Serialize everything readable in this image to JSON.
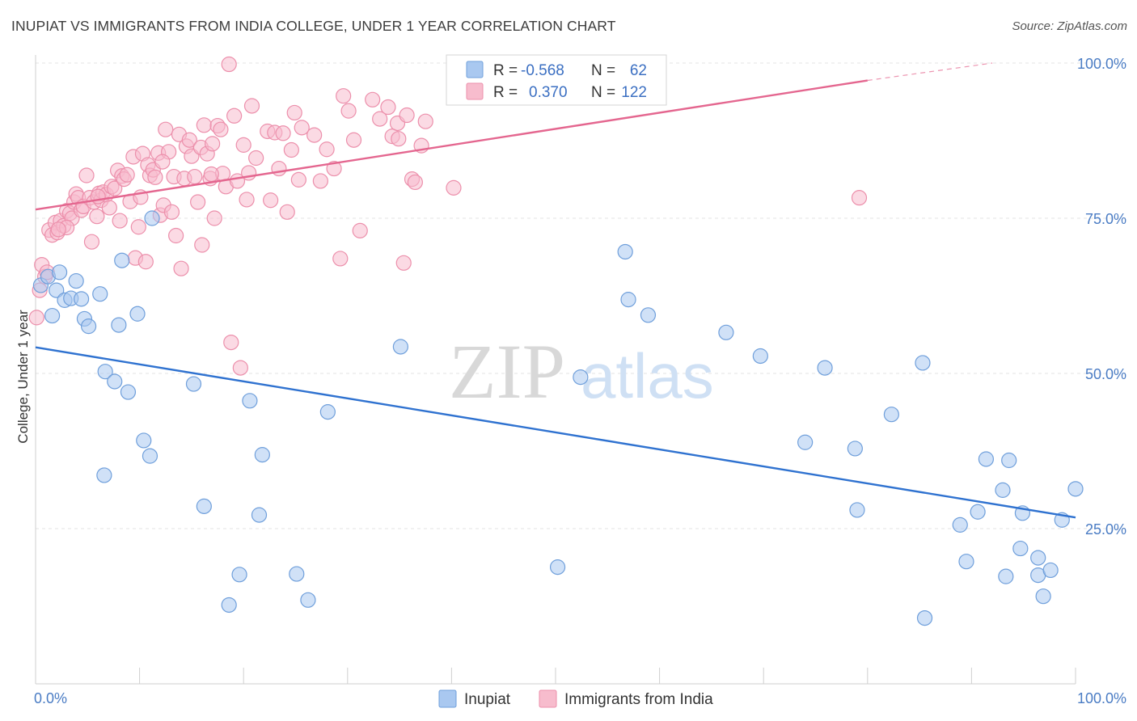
{
  "title": "INUPIAT VS IMMIGRANTS FROM INDIA COLLEGE, UNDER 1 YEAR CORRELATION CHART",
  "source": "Source: ZipAtlas.com",
  "watermark": {
    "zip": "ZIP",
    "atlas": "atlas"
  },
  "colors": {
    "inupiat_fill": "#a9c8f0",
    "inupiat_stroke": "#6f9fdb",
    "inupiat_line": "#2f72d0",
    "india_fill": "#f7bccd",
    "india_stroke": "#ec8fab",
    "india_line": "#e4668f",
    "tick": "#4a7cc4",
    "grid": "#e3e3e3"
  },
  "legend_top": {
    "rows": [
      {
        "r_label": "R =",
        "r_value": "-0.568",
        "n_label": "N =",
        "n_value": "62"
      },
      {
        "r_label": "R =",
        "r_value": "0.370",
        "n_label": "N =",
        "n_value": "122"
      }
    ]
  },
  "chart_data": {
    "type": "scatter",
    "title": "INUPIAT VS IMMIGRANTS FROM INDIA COLLEGE, UNDER 1 YEAR CORRELATION CHART",
    "xlabel": "",
    "ylabel": "College, Under 1 year",
    "xlim": [
      0,
      100
    ],
    "ylim": [
      0,
      100
    ],
    "x_tick_labels": [
      {
        "value": 0,
        "label": "0.0%"
      },
      {
        "value": 100,
        "label": "100.0%"
      }
    ],
    "y_tick_labels": [
      {
        "value": 25,
        "label": "25.0%"
      },
      {
        "value": 50,
        "label": "50.0%"
      },
      {
        "value": 75,
        "label": "75.0%"
      },
      {
        "value": 100,
        "label": "100.0%"
      }
    ],
    "grid": true,
    "legend_position": "bottom",
    "series": [
      {
        "name": "Inupiat",
        "trend": {
          "x0": 0,
          "y0": 54.2,
          "x1": 100,
          "y1": 26.8
        },
        "points": [
          [
            0.5,
            64.2
          ],
          [
            1.2,
            65.6
          ],
          [
            1.6,
            59.3
          ],
          [
            2.0,
            63.4
          ],
          [
            2.3,
            66.3
          ],
          [
            2.8,
            61.8
          ],
          [
            3.4,
            62.1
          ],
          [
            3.9,
            64.9
          ],
          [
            4.4,
            62.0
          ],
          [
            4.7,
            58.8
          ],
          [
            5.1,
            57.6
          ],
          [
            6.2,
            62.8
          ],
          [
            6.6,
            33.6
          ],
          [
            6.7,
            50.3
          ],
          [
            7.6,
            48.7
          ],
          [
            8.0,
            57.8
          ],
          [
            8.3,
            68.2
          ],
          [
            8.9,
            47.0
          ],
          [
            9.8,
            59.6
          ],
          [
            10.4,
            39.2
          ],
          [
            11.0,
            36.7
          ],
          [
            11.2,
            75.0
          ],
          [
            15.2,
            48.3
          ],
          [
            16.2,
            28.6
          ],
          [
            18.6,
            12.7
          ],
          [
            19.6,
            17.6
          ],
          [
            20.6,
            45.6
          ],
          [
            21.5,
            27.2
          ],
          [
            21.8,
            36.9
          ],
          [
            25.1,
            17.7
          ],
          [
            26.2,
            13.5
          ],
          [
            28.1,
            43.8
          ],
          [
            35.1,
            54.3
          ],
          [
            50.2,
            18.8
          ],
          [
            52.4,
            49.4
          ],
          [
            56.7,
            69.6
          ],
          [
            57.0,
            61.9
          ],
          [
            58.9,
            59.4
          ],
          [
            66.4,
            56.6
          ],
          [
            69.7,
            52.8
          ],
          [
            74.0,
            38.9
          ],
          [
            75.9,
            50.9
          ],
          [
            78.8,
            37.9
          ],
          [
            79.0,
            28.0
          ],
          [
            82.3,
            43.4
          ],
          [
            85.3,
            51.7
          ],
          [
            85.5,
            10.6
          ],
          [
            88.9,
            25.6
          ],
          [
            89.5,
            19.7
          ],
          [
            90.6,
            27.7
          ],
          [
            91.4,
            36.2
          ],
          [
            93.0,
            31.2
          ],
          [
            93.3,
            17.3
          ],
          [
            93.6,
            36.0
          ],
          [
            94.7,
            21.8
          ],
          [
            94.9,
            27.5
          ],
          [
            96.4,
            20.3
          ],
          [
            96.4,
            17.5
          ],
          [
            96.9,
            14.1
          ],
          [
            97.6,
            18.3
          ],
          [
            98.7,
            26.4
          ],
          [
            100.0,
            31.4
          ]
        ]
      },
      {
        "name": "Immigrants from India",
        "trend": {
          "x0": 0,
          "y0": 76.4,
          "x1": 80,
          "y1": 97.2,
          "dash_x1": 92,
          "dash_y1": 100
        },
        "points": [
          [
            0.1,
            59.0
          ],
          [
            0.4,
            63.4
          ],
          [
            0.6,
            67.5
          ],
          [
            0.9,
            65.6
          ],
          [
            1.3,
            73.1
          ],
          [
            1.6,
            72.3
          ],
          [
            1.9,
            74.3
          ],
          [
            2.1,
            72.7
          ],
          [
            2.4,
            74.6
          ],
          [
            2.7,
            73.8
          ],
          [
            3.0,
            76.2
          ],
          [
            3.3,
            75.8
          ],
          [
            3.5,
            75.0
          ],
          [
            3.7,
            77.6
          ],
          [
            3.9,
            78.9
          ],
          [
            4.1,
            78.3
          ],
          [
            4.4,
            76.3
          ],
          [
            4.6,
            76.9
          ],
          [
            4.9,
            81.9
          ],
          [
            5.2,
            78.3
          ],
          [
            5.4,
            71.2
          ],
          [
            5.6,
            77.6
          ],
          [
            5.9,
            75.3
          ],
          [
            6.1,
            79.0
          ],
          [
            6.3,
            77.9
          ],
          [
            6.5,
            79.2
          ],
          [
            6.8,
            78.8
          ],
          [
            7.1,
            76.7
          ],
          [
            7.3,
            80.1
          ],
          [
            7.6,
            79.8
          ],
          [
            7.9,
            82.7
          ],
          [
            8.1,
            74.6
          ],
          [
            8.3,
            81.8
          ],
          [
            8.5,
            81.3
          ],
          [
            8.8,
            82.0
          ],
          [
            9.1,
            77.7
          ],
          [
            9.4,
            84.9
          ],
          [
            9.6,
            68.6
          ],
          [
            9.9,
            73.6
          ],
          [
            10.1,
            78.4
          ],
          [
            10.3,
            85.4
          ],
          [
            10.6,
            68.0
          ],
          [
            10.8,
            83.6
          ],
          [
            11.0,
            81.9
          ],
          [
            11.3,
            82.8
          ],
          [
            11.5,
            81.6
          ],
          [
            11.8,
            85.5
          ],
          [
            12.0,
            75.5
          ],
          [
            12.3,
            77.1
          ],
          [
            12.5,
            89.3
          ],
          [
            12.8,
            85.7
          ],
          [
            13.1,
            76.0
          ],
          [
            13.3,
            81.7
          ],
          [
            13.5,
            72.2
          ],
          [
            13.8,
            88.5
          ],
          [
            14.0,
            66.9
          ],
          [
            14.3,
            81.4
          ],
          [
            14.5,
            86.6
          ],
          [
            14.8,
            87.6
          ],
          [
            15.0,
            85.0
          ],
          [
            15.3,
            81.7
          ],
          [
            15.6,
            77.6
          ],
          [
            15.9,
            86.4
          ],
          [
            16.0,
            70.7
          ],
          [
            16.2,
            90.0
          ],
          [
            16.5,
            85.4
          ],
          [
            16.8,
            81.4
          ],
          [
            17.0,
            87.0
          ],
          [
            17.2,
            75.0
          ],
          [
            17.5,
            89.9
          ],
          [
            17.8,
            89.3
          ],
          [
            18.0,
            82.2
          ],
          [
            18.3,
            80.1
          ],
          [
            18.6,
            99.8
          ],
          [
            18.8,
            55.0
          ],
          [
            19.1,
            91.5
          ],
          [
            19.4,
            81.0
          ],
          [
            19.7,
            50.9
          ],
          [
            20.0,
            86.8
          ],
          [
            20.3,
            78.0
          ],
          [
            20.5,
            82.3
          ],
          [
            20.8,
            93.1
          ],
          [
            21.2,
            84.7
          ],
          [
            22.3,
            89.0
          ],
          [
            22.6,
            77.9
          ],
          [
            23.0,
            88.8
          ],
          [
            23.4,
            83.0
          ],
          [
            23.8,
            88.7
          ],
          [
            24.2,
            76.0
          ],
          [
            24.6,
            86.0
          ],
          [
            24.9,
            92.0
          ],
          [
            25.3,
            81.2
          ],
          [
            25.6,
            89.6
          ],
          [
            26.8,
            88.4
          ],
          [
            27.4,
            81.0
          ],
          [
            28.0,
            86.1
          ],
          [
            28.7,
            83.0
          ],
          [
            29.3,
            68.5
          ],
          [
            29.6,
            94.7
          ],
          [
            30.1,
            92.3
          ],
          [
            30.6,
            87.6
          ],
          [
            31.2,
            73.0
          ],
          [
            32.4,
            94.1
          ],
          [
            33.1,
            91.0
          ],
          [
            33.9,
            92.9
          ],
          [
            34.3,
            88.2
          ],
          [
            34.8,
            90.3
          ],
          [
            35.4,
            67.8
          ],
          [
            35.7,
            91.6
          ],
          [
            36.2,
            81.3
          ],
          [
            36.5,
            80.8
          ],
          [
            37.1,
            86.7
          ],
          [
            37.5,
            90.6
          ],
          [
            40.2,
            79.9
          ],
          [
            79.2,
            78.3
          ],
          [
            34.9,
            87.8
          ],
          [
            16.9,
            82.1
          ],
          [
            12.2,
            84.1
          ],
          [
            6.0,
            78.5
          ],
          [
            3.0,
            73.5
          ],
          [
            2.2,
            73.2
          ],
          [
            1.1,
            66.3
          ]
        ]
      }
    ]
  },
  "legend_bottom": [
    {
      "label": "Inupiat"
    },
    {
      "label": "Immigrants from India"
    }
  ]
}
